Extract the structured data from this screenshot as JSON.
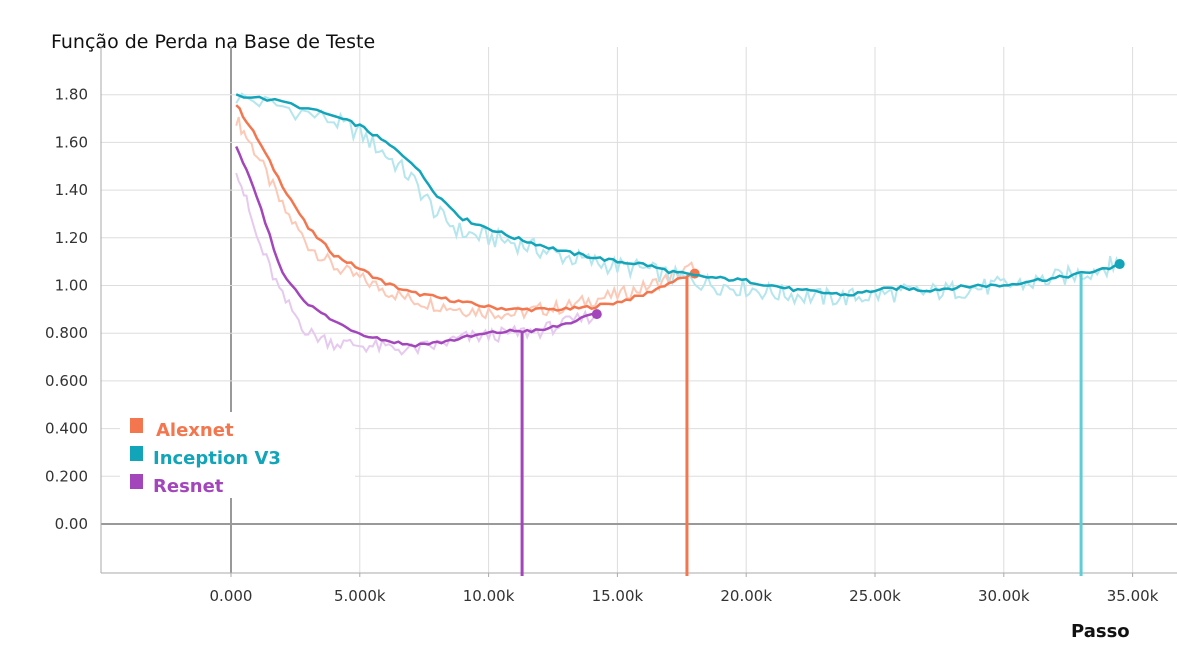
{
  "chart_data": {
    "type": "line",
    "title": "Função de Perda na Base de Teste",
    "xlabel": "Passo",
    "ylabel": "",
    "xlim": [
      -5000,
      36500
    ],
    "ylim": [
      -0.2,
      1.95
    ],
    "x_ticks": [
      0,
      5000,
      10000,
      15000,
      20000,
      25000,
      30000,
      35000
    ],
    "x_tick_labels": [
      "0.000",
      "5.000k",
      "10.00k",
      "15.00k",
      "20.00k",
      "25.00k",
      "30.00k",
      "35.00k"
    ],
    "y_ticks": [
      0,
      0.2,
      0.4,
      0.6,
      0.8,
      1.0,
      1.2,
      1.4,
      1.6,
      1.8
    ],
    "y_tick_labels": [
      "0.00",
      "0.200",
      "0.400",
      "0.600",
      "0.800",
      "1.00",
      "1.20",
      "1.40",
      "1.60",
      "1.80"
    ],
    "grid": true,
    "legend_position": "bottom-left",
    "series": [
      {
        "name": "Alexnet",
        "color": "#f4764e",
        "raw_color": "#fcc9b6",
        "x": [
          200,
          1000,
          2000,
          3000,
          4000,
          5000,
          6000,
          7000,
          8000,
          9000,
          10000,
          11000,
          12000,
          13000,
          14000,
          15000,
          16000,
          17000,
          18000
        ],
        "y": [
          1.76,
          1.62,
          1.42,
          1.24,
          1.13,
          1.07,
          1.01,
          0.97,
          0.95,
          0.93,
          0.91,
          0.9,
          0.9,
          0.9,
          0.91,
          0.93,
          0.96,
          1.01,
          1.05
        ],
        "raw_y": [
          1.7,
          1.55,
          1.33,
          1.17,
          1.08,
          1.03,
          0.98,
          0.94,
          0.92,
          0.9,
          0.89,
          0.88,
          0.9,
          0.91,
          0.94,
          0.96,
          0.99,
          1.03,
          1.08
        ]
      },
      {
        "name": "Inception V3",
        "color": "#12a4b8",
        "raw_color": "#b5e6ed",
        "x": [
          200,
          2000,
          4000,
          5000,
          6000,
          7000,
          8000,
          9000,
          10000,
          11000,
          12000,
          13000,
          14000,
          15000,
          16000,
          17000,
          18000,
          19000,
          20000,
          21000,
          22000,
          23000,
          24000,
          25000,
          26000,
          27000,
          28000,
          29000,
          30000,
          31000,
          32000,
          33000,
          34000,
          34500
        ],
        "y": [
          1.8,
          1.77,
          1.71,
          1.67,
          1.6,
          1.52,
          1.38,
          1.28,
          1.24,
          1.2,
          1.17,
          1.14,
          1.12,
          1.1,
          1.09,
          1.06,
          1.04,
          1.03,
          1.02,
          1.0,
          0.98,
          0.97,
          0.96,
          0.98,
          0.99,
          0.98,
          0.99,
          1.0,
          1.0,
          1.02,
          1.03,
          1.05,
          1.07,
          1.09
        ],
        "raw_y": [
          1.79,
          1.75,
          1.69,
          1.64,
          1.55,
          1.45,
          1.3,
          1.22,
          1.2,
          1.18,
          1.15,
          1.12,
          1.1,
          1.08,
          1.07,
          1.04,
          1.02,
          1.0,
          0.99,
          0.97,
          0.96,
          0.95,
          0.95,
          0.96,
          0.97,
          0.97,
          0.98,
          0.99,
          1.0,
          1.01,
          1.03,
          1.05,
          1.08,
          1.1
        ]
      },
      {
        "name": "Resnet",
        "color": "#a346bc",
        "raw_color": "#e6c9ee",
        "x": [
          200,
          1000,
          2000,
          3000,
          4000,
          5000,
          6000,
          7000,
          8000,
          9000,
          10000,
          11000,
          12000,
          13000,
          14200
        ],
        "y": [
          1.59,
          1.37,
          1.05,
          0.92,
          0.85,
          0.8,
          0.77,
          0.75,
          0.76,
          0.78,
          0.8,
          0.81,
          0.81,
          0.84,
          0.88
        ],
        "raw_y": [
          1.5,
          1.2,
          0.95,
          0.8,
          0.76,
          0.75,
          0.74,
          0.73,
          0.75,
          0.78,
          0.79,
          0.8,
          0.81,
          0.84,
          0.88
        ]
      }
    ],
    "marker_lines": [
      {
        "series": "Alexnet",
        "x": 17700
      },
      {
        "series": "Inception V3",
        "x": 33000
      },
      {
        "series": "Resnet",
        "x": 11300
      }
    ]
  }
}
